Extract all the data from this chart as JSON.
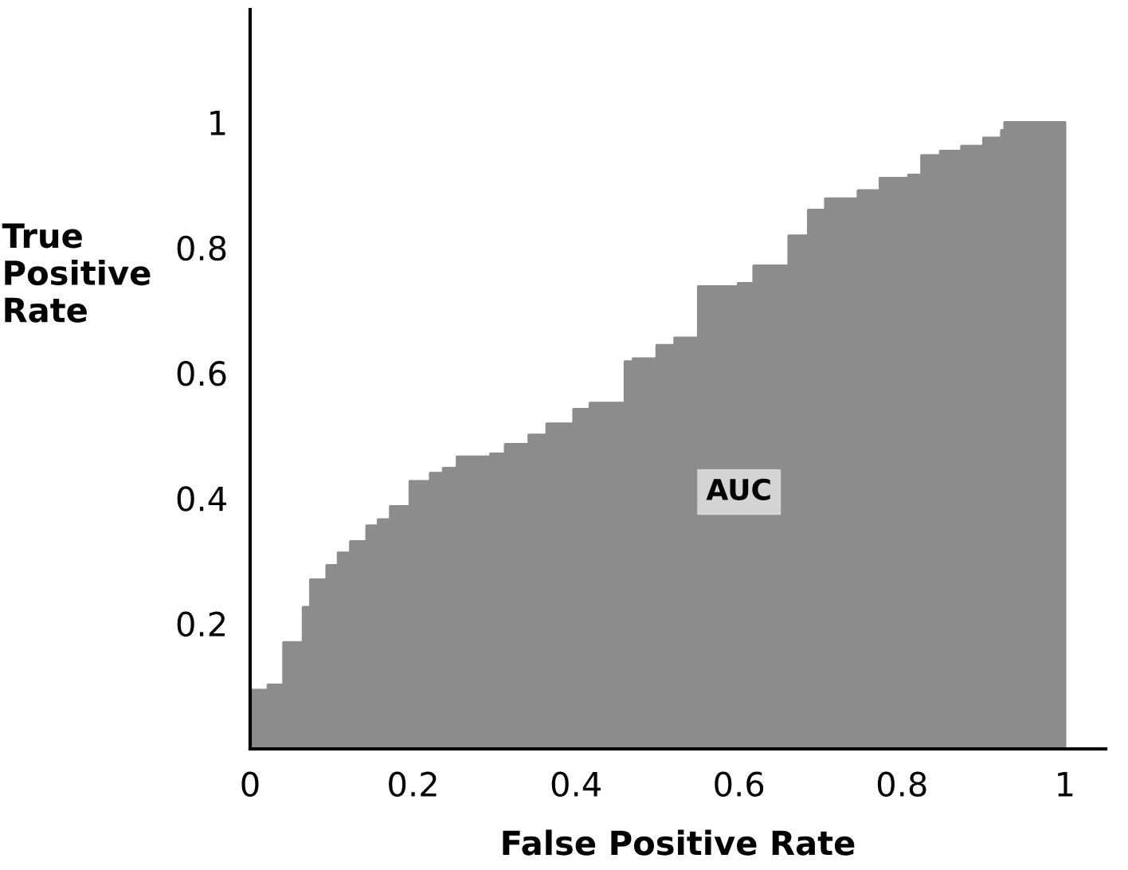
{
  "chart_data": {
    "type": "area",
    "xlabel": "False Positive Rate",
    "ylabel": "True\nPositive\nRate",
    "annotations": [
      "AUC"
    ],
    "x": [
      0.0,
      0.022,
      0.022,
      0.041,
      0.041,
      0.065,
      0.065,
      0.074,
      0.074,
      0.094,
      0.094,
      0.108,
      0.108,
      0.123,
      0.123,
      0.143,
      0.143,
      0.157,
      0.157,
      0.172,
      0.172,
      0.196,
      0.196,
      0.221,
      0.221,
      0.237,
      0.237,
      0.254,
      0.254,
      0.295,
      0.295,
      0.313,
      0.313,
      0.342,
      0.342,
      0.364,
      0.364,
      0.397,
      0.397,
      0.417,
      0.417,
      0.46,
      0.46,
      0.47,
      0.47,
      0.499,
      0.499,
      0.521,
      0.521,
      0.55,
      0.55,
      0.599,
      0.599,
      0.618,
      0.618,
      0.661,
      0.661,
      0.685,
      0.685,
      0.706,
      0.706,
      0.746,
      0.746,
      0.773,
      0.773,
      0.808,
      0.808,
      0.824,
      0.824,
      0.847,
      0.847,
      0.873,
      0.873,
      0.9,
      0.9,
      0.922,
      0.922,
      0.926,
      0.926,
      1.0
    ],
    "values": [
      0.094,
      0.094,
      0.102,
      0.102,
      0.17,
      0.17,
      0.226,
      0.226,
      0.27,
      0.27,
      0.293,
      0.293,
      0.313,
      0.313,
      0.331,
      0.331,
      0.356,
      0.356,
      0.366,
      0.366,
      0.387,
      0.387,
      0.427,
      0.427,
      0.44,
      0.44,
      0.448,
      0.448,
      0.466,
      0.466,
      0.471,
      0.471,
      0.486,
      0.486,
      0.501,
      0.501,
      0.519,
      0.519,
      0.542,
      0.542,
      0.552,
      0.552,
      0.618,
      0.618,
      0.623,
      0.623,
      0.644,
      0.644,
      0.656,
      0.656,
      0.738,
      0.738,
      0.743,
      0.743,
      0.771,
      0.771,
      0.819,
      0.819,
      0.86,
      0.86,
      0.878,
      0.878,
      0.891,
      0.891,
      0.911,
      0.911,
      0.916,
      0.916,
      0.947,
      0.947,
      0.954,
      0.954,
      0.962,
      0.962,
      0.975,
      0.975,
      0.987,
      0.987,
      1.0,
      1.0
    ],
    "color": "#8c8c8c",
    "xlim": [
      0,
      1.05
    ],
    "ylim": [
      0,
      1.18
    ],
    "xticks": [
      0,
      0.2,
      0.4,
      0.6,
      0.8,
      1
    ],
    "yticks": [
      0.2,
      0.4,
      0.6,
      0.8,
      1
    ],
    "grid": false,
    "legend": false
  }
}
